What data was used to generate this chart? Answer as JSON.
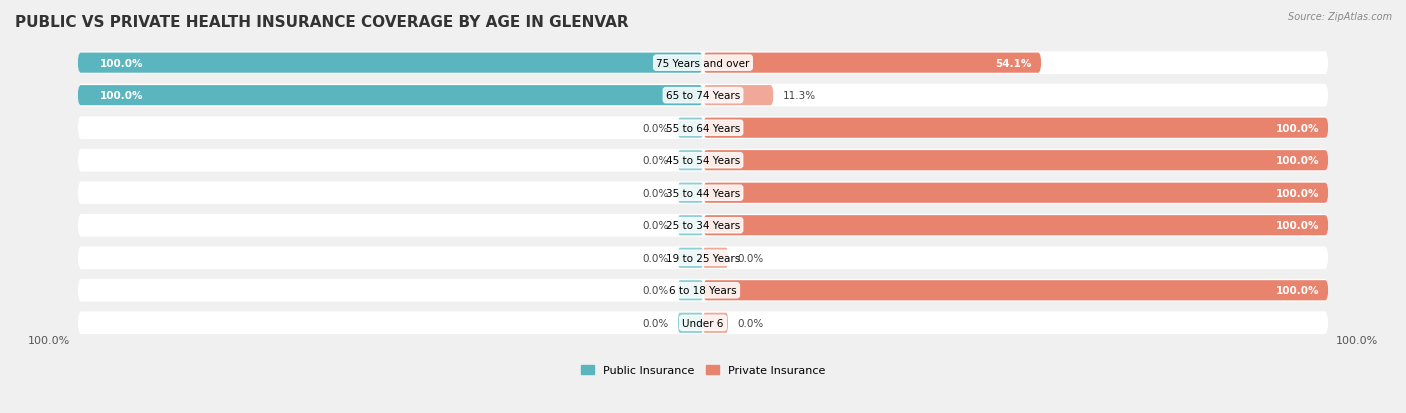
{
  "title": "PUBLIC VS PRIVATE HEALTH INSURANCE COVERAGE BY AGE IN GLENVAR",
  "source": "Source: ZipAtlas.com",
  "categories": [
    "Under 6",
    "6 to 18 Years",
    "19 to 25 Years",
    "25 to 34 Years",
    "35 to 44 Years",
    "45 to 54 Years",
    "55 to 64 Years",
    "65 to 74 Years",
    "75 Years and over"
  ],
  "public_values": [
    0.0,
    0.0,
    0.0,
    0.0,
    0.0,
    0.0,
    0.0,
    100.0,
    100.0
  ],
  "private_values": [
    0.0,
    100.0,
    0.0,
    100.0,
    100.0,
    100.0,
    100.0,
    11.3,
    54.1
  ],
  "public_color": "#5ab5be",
  "private_color": "#e8836e",
  "public_color_light": "#8dcdd4",
  "private_color_light": "#f0a898",
  "bg_color": "#f0f0f0",
  "bar_bg_color": "#e8e8e8",
  "title_fontsize": 11,
  "label_fontsize": 7.5,
  "axis_fontsize": 8,
  "legend_fontsize": 8,
  "bar_height": 0.62,
  "max_value": 100.0
}
